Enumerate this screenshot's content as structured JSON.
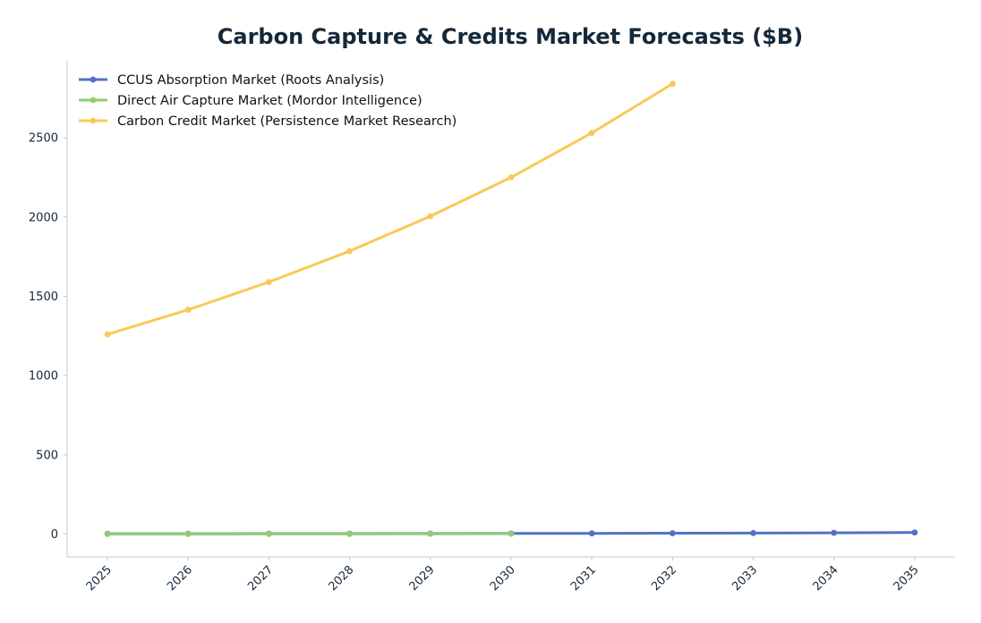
{
  "chart_data": {
    "type": "line",
    "title": "Carbon Capture & Credits Market Forecasts ($B)",
    "xlabel": "",
    "ylabel": "",
    "x": [
      2025,
      2026,
      2027,
      2028,
      2029,
      2030,
      2031,
      2032,
      2033,
      2034,
      2035
    ],
    "x_tick_labels": [
      "2025",
      "2026",
      "2027",
      "2028",
      "2029",
      "2030",
      "2031",
      "2032",
      "2033",
      "2034",
      "2035"
    ],
    "y_ticks": [
      0,
      500,
      1000,
      1500,
      2000,
      2500
    ],
    "y_tick_labels": [
      "0",
      "500",
      "1000",
      "1500",
      "2000",
      "2500"
    ],
    "xlim": [
      2024.5,
      2035.5
    ],
    "ylim": [
      -143,
      2985
    ],
    "grid": false,
    "legend_position": "top-left",
    "series": [
      {
        "name": "CCUS Absorption Market (Roots Analysis)",
        "color": "#5470c6",
        "x": [
          2025,
          2026,
          2027,
          2028,
          2029,
          2030,
          2031,
          2032,
          2033,
          2034,
          2035
        ],
        "values": [
          2.5,
          2.8,
          3.2,
          3.6,
          4.0,
          4.6,
          5.2,
          6.0,
          7.0,
          8.5,
          10.5
        ]
      },
      {
        "name": "Direct Air Capture Market (Mordor Intelligence)",
        "color": "#91cc75",
        "x": [
          2025,
          2026,
          2027,
          2028,
          2029,
          2030
        ],
        "values": [
          0.6,
          0.9,
          1.2,
          1.6,
          2.1,
          2.8
        ]
      },
      {
        "name": "Carbon Credit Market (Persistence Market Research)",
        "color": "#fac858",
        "x": [
          2025,
          2026,
          2027,
          2028,
          2029,
          2030,
          2031,
          2032
        ],
        "values": [
          1260,
          1415,
          1590,
          1785,
          2005,
          2250,
          2530,
          2840
        ]
      }
    ]
  }
}
